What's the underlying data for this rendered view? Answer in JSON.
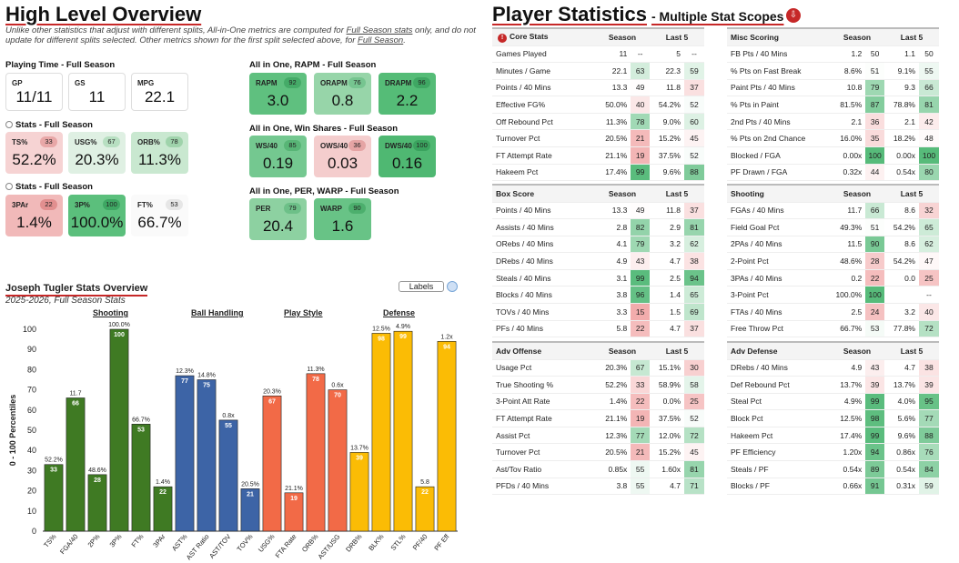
{
  "left": {
    "title": "High Level Overview",
    "note_before": "Unlike other statistics that adjust with different splits, All-in-One metrics are computed for ",
    "note_link1": "Full Season stats",
    "note_mid": " only, and do not update for different splits selected. Other metrics shown for the first split selected above, for ",
    "note_link2": "Full Season",
    "note_end": ".",
    "playing_time": {
      "header": "Playing Time - Full Season",
      "cards": [
        {
          "label": "GP",
          "value": "11/11"
        },
        {
          "label": "GS",
          "value": "11"
        },
        {
          "label": "MPG",
          "value": "22.1"
        }
      ]
    },
    "stats1": {
      "header": "Stats - Full Season",
      "cards": [
        {
          "label": "TS%",
          "pct": "33",
          "value": "52.2%",
          "bg": "#f6d3d3",
          "pill": "#e8a7a7"
        },
        {
          "label": "USG%",
          "pct": "67",
          "value": "20.3%",
          "bg": "#dff0e3",
          "pill": "#b7dfc1"
        },
        {
          "label": "ORB%",
          "pct": "78",
          "value": "11.3%",
          "bg": "#c9e8d0",
          "pill": "#9fd3ab"
        }
      ]
    },
    "stats2": {
      "header": "Stats - Full Season",
      "cards": [
        {
          "label": "3PAr",
          "pct": "22",
          "value": "1.4%",
          "bg": "#f1b9b9",
          "pill": "#e28f8f"
        },
        {
          "label": "3P%",
          "pct": "100",
          "value": "100.0%",
          "bg": "#5bbf7c",
          "pill": "#3ea763"
        },
        {
          "label": "FT%",
          "pct": "53",
          "value": "66.7%",
          "bg": "#fafafa",
          "pill": "#e6e6e6"
        }
      ]
    },
    "aio_rapm": {
      "header": "All in One, RAPM - Full Season",
      "cards": [
        {
          "label": "RAPM",
          "pct": "92",
          "value": "3.0",
          "bg": "#5fc07f",
          "pill": "#45ab68"
        },
        {
          "label": "ORAPM",
          "pct": "76",
          "value": "0.8",
          "bg": "#97d5a9",
          "pill": "#76c590"
        },
        {
          "label": "DRAPM",
          "pct": "96",
          "value": "2.2",
          "bg": "#55bc77",
          "pill": "#3fa763"
        }
      ]
    },
    "aio_ws": {
      "header": "All in One, Win Shares - Full Season",
      "cards": [
        {
          "label": "WS/40",
          "pct": "85",
          "value": "0.19",
          "bg": "#74c890",
          "pill": "#58b576"
        },
        {
          "label": "OWS/40",
          "pct": "36",
          "value": "0.03",
          "bg": "#f4cdcd",
          "pill": "#e5a4a4"
        },
        {
          "label": "DWS/40",
          "pct": "100",
          "value": "0.16",
          "bg": "#4fb872",
          "pill": "#3aa35e"
        }
      ]
    },
    "aio_per": {
      "header": "All in One, PER, WARP - Full Season",
      "cards": [
        {
          "label": "PER",
          "pct": "79",
          "value": "20.4",
          "bg": "#8dd1a1",
          "pill": "#6dc088"
        },
        {
          "label": "WARP",
          "pct": "90",
          "value": "1.6",
          "bg": "#68c386",
          "pill": "#4caf6d"
        }
      ]
    }
  },
  "chart_panel": {
    "title": "Joseph Tugler Stats Overview",
    "subtitle": "2025-2026, Full Season Stats",
    "labels_toggle": "Labels",
    "groups": [
      {
        "name": "Shooting",
        "color": "#4f8a2e"
      },
      {
        "name": "Ball Handling",
        "color": "#2e63a8"
      },
      {
        "name": "Play Style",
        "color": "#e8653e"
      },
      {
        "name": "Defense",
        "color": "#e6a800"
      }
    ]
  },
  "chart_data": {
    "type": "bar",
    "title": "Joseph Tugler Stats Overview",
    "subtitle": "2025-2026, Full Season Stats",
    "ylabel": "0 - 100 Percentiles",
    "ylim": [
      0,
      100
    ],
    "yticks": [
      "0",
      "10",
      "20",
      "30",
      "40",
      "50",
      "60",
      "70",
      "80",
      "90",
      "100"
    ],
    "categories": [
      "TS%",
      "FGA/40",
      "2P%",
      "3P%",
      "FT%",
      "3PAr",
      "AST%",
      "AST Ratio",
      "AST/TOV",
      "TOV%",
      "USG%",
      "FTA Rate",
      "ORB%",
      "AST/USG",
      "DRB%",
      "BLK%",
      "STL%",
      "PF/40",
      "PF Eff"
    ],
    "values": [
      33,
      66,
      28,
      100,
      53,
      22,
      77,
      75,
      55,
      21,
      67,
      19,
      78,
      70,
      39,
      98,
      99,
      22,
      94
    ],
    "value_labels": [
      "33",
      "66",
      "28",
      "100",
      "53",
      "22",
      "77",
      "75",
      "55",
      "21",
      "67",
      "19",
      "78",
      "70",
      "39",
      "98",
      "99",
      "22",
      "94"
    ],
    "raw_labels": [
      "52.2%",
      "11.7",
      "48.6%",
      "100.0%",
      "66.7%",
      "1.4%",
      "12.3%",
      "14.8%",
      "0.8x",
      "20.5%",
      "20.3%",
      "21.1%",
      "11.3%",
      "0.6x",
      "13.7%",
      "12.5%",
      "4.9%",
      "5.8",
      "1.2x"
    ],
    "groups": [
      "Shooting",
      "Shooting",
      "Shooting",
      "Shooting",
      "Shooting",
      "Shooting",
      "Ball Handling",
      "Ball Handling",
      "Ball Handling",
      "Ball Handling",
      "Play Style",
      "Play Style",
      "Play Style",
      "Play Style",
      "Defense",
      "Defense",
      "Defense",
      "Defense",
      "Defense"
    ],
    "colors": {
      "Shooting": "#3f7a23",
      "Ball Handling": "#3d64a6",
      "Play Style": "#f26a47",
      "Defense": "#fbbc05"
    }
  },
  "right": {
    "title": "Player Statistics",
    "subtitle": "- Multiple Stat Scopes",
    "tables": [
      {
        "title": "Core Stats",
        "col1": "Season",
        "col2": "Last 5",
        "rows": [
          [
            "Games Played",
            "11",
            "--",
            "5",
            "--"
          ],
          [
            "Minutes / Game",
            "22.1",
            "63",
            "22.3",
            "59"
          ],
          [
            "Points / 40 Mins",
            "13.3",
            "49",
            "11.8",
            "37"
          ],
          [
            "Effective FG%",
            "50.0%",
            "40",
            "54.2%",
            "52"
          ],
          [
            "Off Rebound Pct",
            "11.3%",
            "78",
            "9.0%",
            "60"
          ],
          [
            "Turnover Pct",
            "20.5%",
            "21",
            "15.2%",
            "45"
          ],
          [
            "FT Attempt Rate",
            "21.1%",
            "19",
            "37.5%",
            "52"
          ],
          [
            "Hakeem Pct",
            "17.4%",
            "99",
            "9.6%",
            "88"
          ]
        ]
      },
      {
        "title": "Misc Scoring",
        "col1": "Season",
        "col2": "Last 5",
        "rows": [
          [
            "FB Pts / 40 Mins",
            "1.2",
            "50",
            "1.1",
            "50"
          ],
          [
            "% Pts on Fast Break",
            "8.6%",
            "51",
            "9.1%",
            "55"
          ],
          [
            "Paint Pts / 40 Mins",
            "10.8",
            "79",
            "9.3",
            "66"
          ],
          [
            "% Pts in Paint",
            "81.5%",
            "87",
            "78.8%",
            "81"
          ],
          [
            "2nd Pts / 40 Mins",
            "2.1",
            "36",
            "2.1",
            "42"
          ],
          [
            "% Pts on 2nd Chance",
            "16.0%",
            "35",
            "18.2%",
            "48"
          ],
          [
            "Blocked / FGA",
            "0.00x",
            "100",
            "0.00x",
            "100"
          ],
          [
            "PF Drawn / FGA",
            "0.32x",
            "44",
            "0.54x",
            "80"
          ]
        ]
      },
      {
        "title": "Box Score",
        "col1": "Season",
        "col2": "Last 5",
        "rows": [
          [
            "Points / 40 Mins",
            "13.3",
            "49",
            "11.8",
            "37"
          ],
          [
            "Assists / 40 Mins",
            "2.8",
            "82",
            "2.9",
            "81"
          ],
          [
            "ORebs / 40 Mins",
            "4.1",
            "79",
            "3.2",
            "62"
          ],
          [
            "DRebs / 40 Mins",
            "4.9",
            "43",
            "4.7",
            "38"
          ],
          [
            "Steals / 40 Mins",
            "3.1",
            "99",
            "2.5",
            "94"
          ],
          [
            "Blocks / 40 Mins",
            "3.8",
            "96",
            "1.4",
            "65"
          ],
          [
            "TOVs / 40 Mins",
            "3.3",
            "15",
            "1.5",
            "69"
          ],
          [
            "PFs / 40 Mins",
            "5.8",
            "22",
            "4.7",
            "37"
          ]
        ]
      },
      {
        "title": "Shooting",
        "col1": "Season",
        "col2": "Last 5",
        "rows": [
          [
            "FGAs / 40 Mins",
            "11.7",
            "66",
            "8.6",
            "32"
          ],
          [
            "Field Goal Pct",
            "49.3%",
            "51",
            "54.2%",
            "65"
          ],
          [
            "2PAs / 40 Mins",
            "11.5",
            "90",
            "8.6",
            "62"
          ],
          [
            "2-Point Pct",
            "48.6%",
            "28",
            "54.2%",
            "47"
          ],
          [
            "3PAs / 40 Mins",
            "0.2",
            "22",
            "0.0",
            "25"
          ],
          [
            "3-Point Pct",
            "100.0%",
            "100",
            "",
            "--"
          ],
          [
            "FTAs / 40 Mins",
            "2.5",
            "24",
            "3.2",
            "40"
          ],
          [
            "Free Throw Pct",
            "66.7%",
            "53",
            "77.8%",
            "72"
          ]
        ]
      },
      {
        "title": "Adv Offense",
        "col1": "Season",
        "col2": "Last 5",
        "rows": [
          [
            "Usage Pct",
            "20.3%",
            "67",
            "15.1%",
            "30"
          ],
          [
            "True Shooting %",
            "52.2%",
            "33",
            "58.9%",
            "58"
          ],
          [
            "3-Point Att Rate",
            "1.4%",
            "22",
            "0.0%",
            "25"
          ],
          [
            "FT Attempt Rate",
            "21.1%",
            "19",
            "37.5%",
            "52"
          ],
          [
            "Assist Pct",
            "12.3%",
            "77",
            "12.0%",
            "72"
          ],
          [
            "Turnover Pct",
            "20.5%",
            "21",
            "15.2%",
            "45"
          ],
          [
            "Ast/Tov Ratio",
            "0.85x",
            "55",
            "1.60x",
            "81"
          ],
          [
            "PFDs / 40 Mins",
            "3.8",
            "55",
            "4.7",
            "71"
          ]
        ]
      },
      {
        "title": "Adv Defense",
        "col1": "Season",
        "col2": "Last 5",
        "rows": [
          [
            "DRebs / 40 Mins",
            "4.9",
            "43",
            "4.7",
            "38"
          ],
          [
            "Def Rebound Pct",
            "13.7%",
            "39",
            "13.7%",
            "39"
          ],
          [
            "Steal Pct",
            "4.9%",
            "99",
            "4.0%",
            "95"
          ],
          [
            "Block Pct",
            "12.5%",
            "98",
            "5.6%",
            "77"
          ],
          [
            "Hakeem Pct",
            "17.4%",
            "99",
            "9.6%",
            "88"
          ],
          [
            "PF Efficiency",
            "1.20x",
            "94",
            "0.86x",
            "76"
          ],
          [
            "Steals / PF",
            "0.54x",
            "89",
            "0.54x",
            "84"
          ],
          [
            "Blocks / PF",
            "0.66x",
            "91",
            "0.31x",
            "59"
          ]
        ]
      }
    ]
  }
}
